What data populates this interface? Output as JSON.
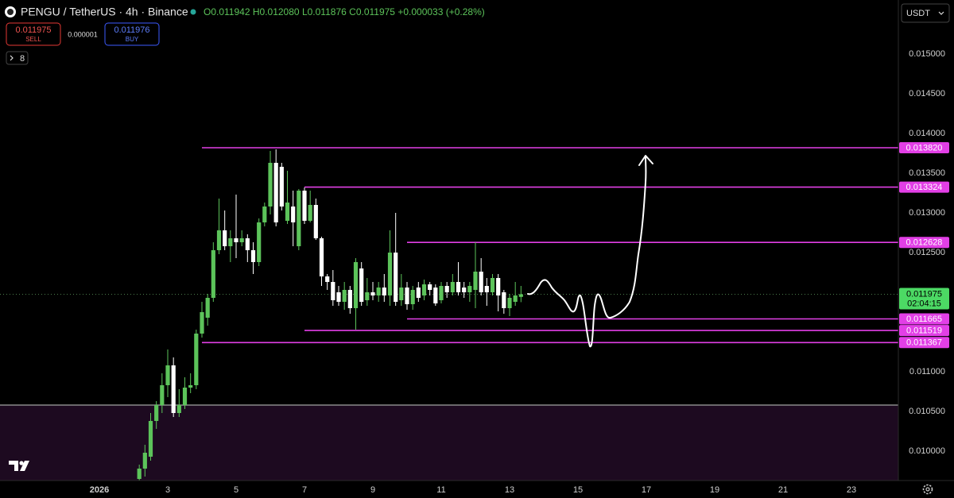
{
  "header": {
    "symbol": "PENGU / TetherUS · 4h · Binance",
    "ohlc": [
      {
        "label": "O",
        "text": "0.011942"
      },
      {
        "label": "H",
        "text": "0.012080"
      },
      {
        "label": "L",
        "text": "0.011876"
      },
      {
        "label": "C",
        "text": "0.011975"
      }
    ],
    "change": "+0.000033 (+0.28%)"
  },
  "order_panel": {
    "sell_price": "0.011975",
    "sell": "SELL",
    "spread": "0.000001",
    "buy_price": "0.011976",
    "buy": "BUY",
    "indicators": "8"
  },
  "currency": "USDT",
  "chart_data": {
    "type": "candlestick",
    "up_color": "#5cc35a",
    "down_color": "#ffffff",
    "level_color": "#e23fe6",
    "x": [
      2.167,
      2.333,
      2.5,
      2.667,
      2.833,
      3,
      3.167,
      3.333,
      3.5,
      3.667,
      3.833,
      4,
      4.167,
      4.333,
      4.5,
      4.667,
      4.833,
      5,
      5.167,
      5.333,
      5.5,
      5.667,
      5.833,
      6,
      6.167,
      6.333,
      6.5,
      6.667,
      6.833,
      7,
      7.167,
      7.333,
      7.5,
      7.667,
      7.833,
      8,
      8.167,
      8.333,
      8.5,
      8.667,
      8.833,
      9,
      9.167,
      9.333,
      9.5,
      9.667,
      9.833,
      10,
      10.167,
      10.333,
      10.5,
      10.667,
      10.833,
      11,
      11.167,
      11.333,
      11.5,
      11.667,
      11.833,
      12,
      12.167,
      12.333,
      12.5,
      12.667,
      12.833,
      13,
      13.167,
      13.333
    ],
    "open": [
      0.00965,
      0.00978,
      0.00993,
      0.01038,
      0.01058,
      0.01083,
      0.01108,
      0.01048,
      0.01058,
      0.0108,
      0.01083,
      0.01148,
      0.01168,
      0.01193,
      0.01253,
      0.01278,
      0.01258,
      0.01268,
      0.01263,
      0.01268,
      0.01253,
      0.01238,
      0.01288,
      0.01308,
      0.01363,
      0.01358,
      0.0129,
      0.01308,
      0.01258,
      0.01328,
      0.0129,
      0.0131,
      0.01268,
      0.0122,
      0.01213,
      0.012,
      0.01188,
      0.01203,
      0.0118,
      0.0123,
      0.0119,
      0.012,
      0.01196,
      0.01206,
      0.01196,
      0.0125,
      0.0119,
      0.01206,
      0.01185,
      0.01206,
      0.01196,
      0.0121,
      0.01206,
      0.0119,
      0.01208,
      0.012,
      0.01213,
      0.01206,
      0.012,
      0.01203,
      0.01226,
      0.01208,
      0.012,
      0.01218,
      0.012,
      0.0118,
      0.01188,
      0.011942
    ],
    "high": [
      0.00983,
      0.01008,
      0.01048,
      0.01063,
      0.01098,
      0.01128,
      0.01118,
      0.01078,
      0.01093,
      0.01098,
      0.01153,
      0.01188,
      0.01198,
      0.01263,
      0.01318,
      0.01303,
      0.01278,
      0.01323,
      0.01278,
      0.01273,
      0.01263,
      0.01293,
      0.01313,
      0.01378,
      0.0138,
      0.01363,
      0.01353,
      0.01328,
      0.0133,
      0.01332,
      0.01328,
      0.01318,
      0.0127,
      0.01223,
      0.01228,
      0.01208,
      0.01213,
      0.01208,
      0.01243,
      0.01238,
      0.01218,
      0.01213,
      0.01213,
      0.01223,
      0.01278,
      0.013,
      0.01223,
      0.01213,
      0.01208,
      0.01213,
      0.01216,
      0.01213,
      0.0121,
      0.01213,
      0.01213,
      0.01223,
      0.01238,
      0.01213,
      0.01213,
      0.01263,
      0.01243,
      0.01218,
      0.01223,
      0.01223,
      0.01203,
      0.01198,
      0.01213,
      0.01208
    ],
    "low": [
      0.00958,
      0.00968,
      0.00988,
      0.01028,
      0.01048,
      0.01068,
      0.01043,
      0.01043,
      0.01053,
      0.01073,
      0.01078,
      0.01143,
      0.01158,
      0.01188,
      0.01248,
      0.01253,
      0.01238,
      0.01243,
      0.01258,
      0.01238,
      0.01223,
      0.01233,
      0.01283,
      0.01298,
      0.01283,
      0.01303,
      0.01286,
      0.01258,
      0.01253,
      0.01286,
      0.01288,
      0.01266,
      0.01208,
      0.01203,
      0.01183,
      0.01183,
      0.01178,
      0.01173,
      0.01153,
      0.01183,
      0.01183,
      0.0119,
      0.01188,
      0.01188,
      0.01183,
      0.01183,
      0.01183,
      0.01178,
      0.01178,
      0.01188,
      0.0119,
      0.01196,
      0.01183,
      0.01186,
      0.01193,
      0.01196,
      0.01196,
      0.01193,
      0.01188,
      0.0118,
      0.01196,
      0.01183,
      0.01196,
      0.01176,
      0.01173,
      0.0117,
      0.01183,
      0.011876
    ],
    "close": [
      0.00978,
      0.00998,
      0.01038,
      0.01058,
      0.01083,
      0.01108,
      0.01048,
      0.01058,
      0.0108,
      0.01083,
      0.01148,
      0.01175,
      0.01193,
      0.01253,
      0.01278,
      0.01258,
      0.01268,
      0.01263,
      0.01268,
      0.01253,
      0.01238,
      0.01288,
      0.01308,
      0.01363,
      0.01288,
      0.01308,
      0.01313,
      0.01288,
      0.01328,
      0.0129,
      0.0131,
      0.01268,
      0.0122,
      0.01213,
      0.0119,
      0.01188,
      0.01203,
      0.0118,
      0.01238,
      0.01188,
      0.012,
      0.01196,
      0.01206,
      0.01196,
      0.0125,
      0.01188,
      0.01206,
      0.01185,
      0.01203,
      0.01193,
      0.0121,
      0.01203,
      0.01186,
      0.01208,
      0.012,
      0.01213,
      0.012,
      0.012,
      0.01208,
      0.01226,
      0.012,
      0.012,
      0.01218,
      0.01196,
      0.0118,
      0.01193,
      0.01196,
      0.011975
    ],
    "xlim": [
      -1.907,
      24.372
    ],
    "xticks": [
      {
        "value": 1,
        "label": "2026"
      },
      3,
      5,
      7,
      9,
      11,
      13,
      15,
      17,
      19,
      21,
      23
    ],
    "ylim": [
      0.00963,
      0.01568
    ],
    "yticks": [
      {
        "value": 0.01,
        "label": "0.010000"
      },
      {
        "value": 0.0105,
        "label": "0.010500"
      },
      {
        "value": 0.011,
        "label": "0.011000"
      },
      {
        "value": 0.0125,
        "label": "0.012500"
      },
      {
        "value": 0.013,
        "label": "0.013000"
      },
      {
        "value": 0.0135,
        "label": "0.013500"
      },
      {
        "value": 0.014,
        "label": "0.014000"
      },
      {
        "value": 0.0145,
        "label": "0.014500"
      },
      {
        "value": 0.015,
        "label": "0.015000"
      }
    ],
    "levels": [
      {
        "value": 0.01382,
        "label": "0.013820",
        "start": 4
      },
      {
        "value": 0.013324,
        "label": "0.013324",
        "start": 7
      },
      {
        "value": 0.012628,
        "label": "0.012628",
        "start": 10
      },
      {
        "value": 0.011665,
        "label": "0.011665",
        "start": 10
      },
      {
        "value": 0.011519,
        "label": "0.011519",
        "start": 7
      },
      {
        "value": 0.011367,
        "label": "0.011367",
        "start": 4
      }
    ],
    "last_price": {
      "value": 0.011975,
      "label": "0.011975",
      "countdown": "02:04:15",
      "color": "#4cd964"
    },
    "zone": {
      "top": 0.01058,
      "color": "#1d0a20"
    }
  }
}
